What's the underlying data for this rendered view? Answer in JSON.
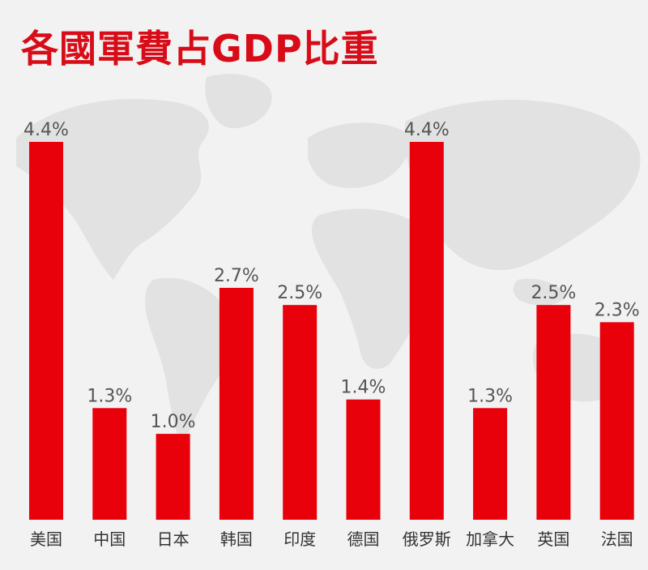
{
  "chart_data": {
    "type": "bar",
    "title": "各國軍費占GDP比重",
    "categories": [
      "美国",
      "中国",
      "日本",
      "韩国",
      "印度",
      "德国",
      "俄罗斯",
      "加拿大",
      "英国",
      "法国"
    ],
    "values": [
      4.4,
      1.3,
      1.0,
      2.7,
      2.5,
      1.4,
      4.4,
      1.3,
      2.5,
      2.3
    ],
    "value_labels": [
      "4.4%",
      "1.3%",
      "1.0%",
      "2.7%",
      "2.5%",
      "1.4%",
      "4.4%",
      "1.3%",
      "2.5%",
      "2.3%"
    ],
    "ylim": [
      0,
      4.4
    ],
    "grid": false,
    "legend": "none",
    "bar_color": "#e8000b",
    "background": "world-map-watermark"
  }
}
